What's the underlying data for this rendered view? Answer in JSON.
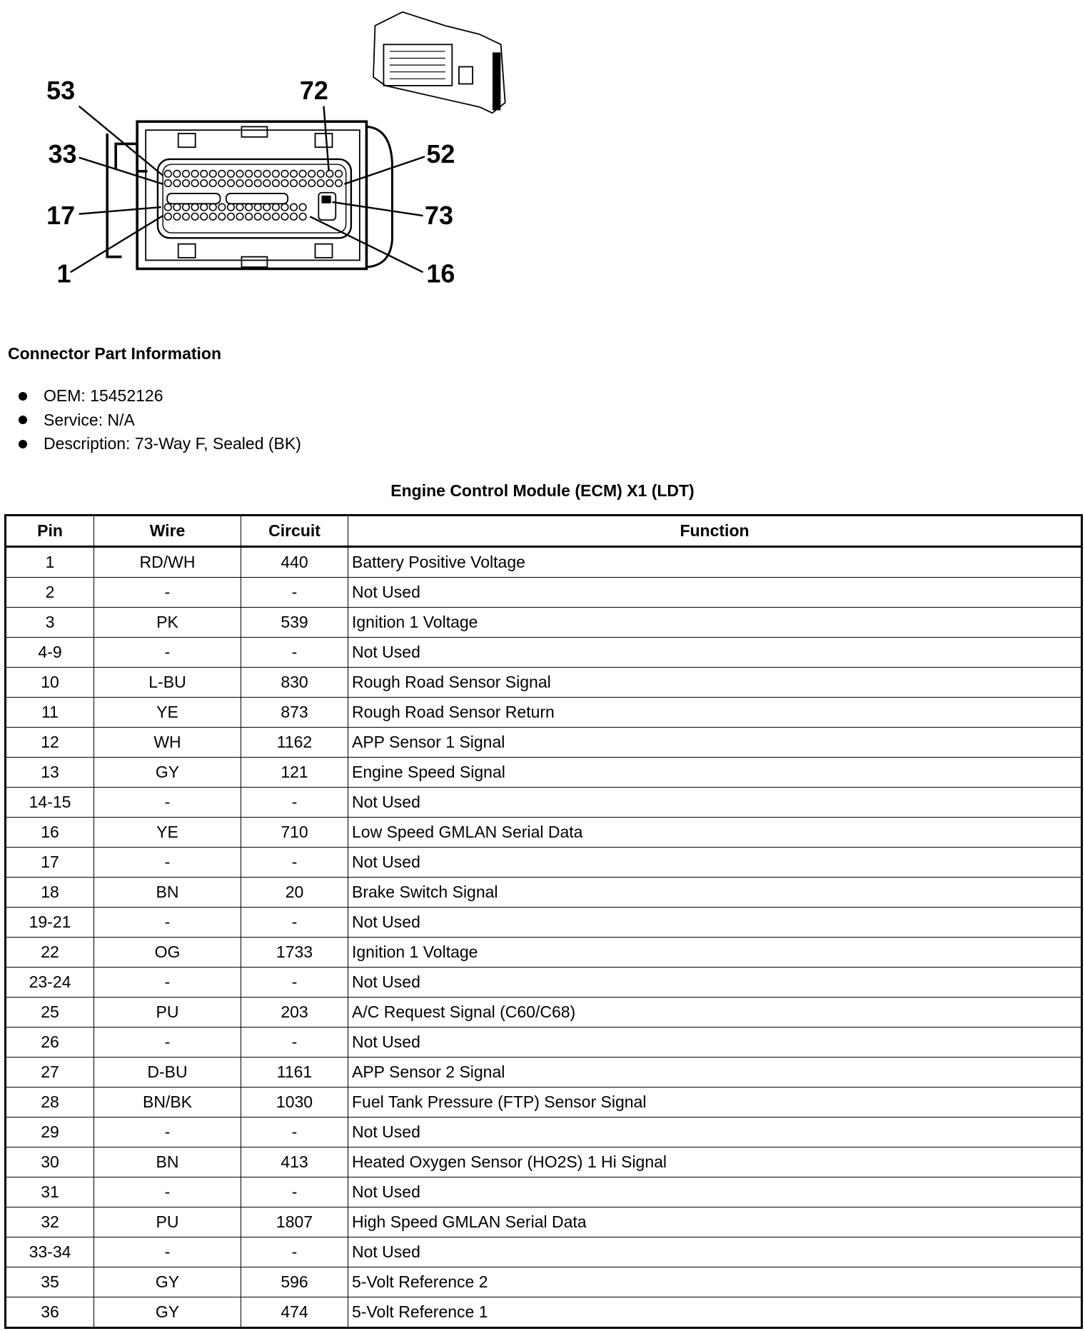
{
  "diagram": {
    "callouts": [
      "53",
      "72",
      "33",
      "52",
      "17",
      "73",
      "1",
      "16"
    ]
  },
  "part_info": {
    "heading": "Connector Part Information",
    "items": [
      "OEM: 15452126",
      "Service: N/A",
      "Description: 73-Way F, Sealed (BK)"
    ]
  },
  "table": {
    "title": "Engine Control Module (ECM) X1 (LDT)",
    "headers": [
      "Pin",
      "Wire",
      "Circuit",
      "Function"
    ],
    "rows": [
      [
        "1",
        "RD/WH",
        "440",
        "Battery Positive Voltage"
      ],
      [
        "2",
        "-",
        "-",
        "Not Used"
      ],
      [
        "3",
        "PK",
        "539",
        "Ignition 1 Voltage"
      ],
      [
        "4-9",
        "-",
        "-",
        "Not Used"
      ],
      [
        "10",
        "L-BU",
        "830",
        "Rough Road Sensor Signal"
      ],
      [
        "11",
        "YE",
        "873",
        "Rough Road Sensor Return"
      ],
      [
        "12",
        "WH",
        "1162",
        "APP Sensor 1 Signal"
      ],
      [
        "13",
        "GY",
        "121",
        "Engine Speed Signal"
      ],
      [
        "14-15",
        "-",
        "-",
        "Not Used"
      ],
      [
        "16",
        "YE",
        "710",
        "Low Speed GMLAN Serial Data"
      ],
      [
        "17",
        "-",
        "-",
        "Not Used"
      ],
      [
        "18",
        "BN",
        "20",
        "Brake Switch Signal"
      ],
      [
        "19-21",
        "-",
        "-",
        "Not Used"
      ],
      [
        "22",
        "OG",
        "1733",
        "Ignition 1 Voltage"
      ],
      [
        "23-24",
        "-",
        "-",
        "Not Used"
      ],
      [
        "25",
        "PU",
        "203",
        "A/C Request Signal (C60/C68)"
      ],
      [
        "26",
        "-",
        "-",
        "Not Used"
      ],
      [
        "27",
        "D-BU",
        "1161",
        "APP Sensor 2 Signal"
      ],
      [
        "28",
        "BN/BK",
        "1030",
        "Fuel Tank Pressure (FTP) Sensor Signal"
      ],
      [
        "29",
        "-",
        "-",
        "Not Used"
      ],
      [
        "30",
        "BN",
        "413",
        "Heated Oxygen Sensor (HO2S) 1 Hi Signal"
      ],
      [
        "31",
        "-",
        "-",
        "Not Used"
      ],
      [
        "32",
        "PU",
        "1807",
        "High Speed GMLAN Serial Data"
      ],
      [
        "33-34",
        "-",
        "-",
        "Not Used"
      ],
      [
        "35",
        "GY",
        "596",
        "5-Volt Reference 2"
      ],
      [
        "36",
        "GY",
        "474",
        "5-Volt Reference 1"
      ]
    ]
  }
}
